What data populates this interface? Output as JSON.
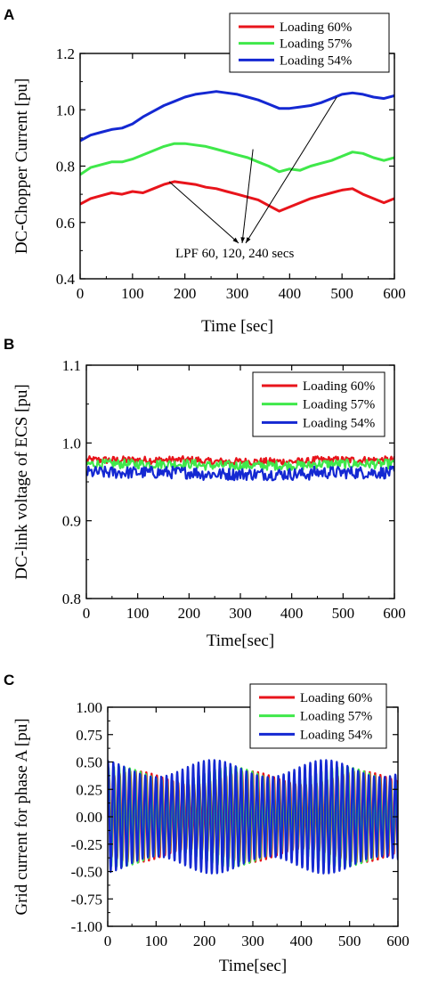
{
  "chart_data": [
    {
      "panel_label": "A",
      "type": "line",
      "xlabel": "Time [sec]",
      "ylabel": "DC-Chopper Current [pu]",
      "xlim": [
        0,
        600
      ],
      "ylim": [
        0.4,
        1.2
      ],
      "xticks": [
        "0",
        "100",
        "200",
        "300",
        "400",
        "500",
        "600"
      ],
      "yticks": [
        "0.4",
        "0.6",
        "0.8",
        "1.0",
        "1.2"
      ],
      "legend_position": "top-right",
      "annotation": "LPF 60, 120, 240 secs",
      "series": [
        {
          "name": "Loading 60%",
          "color": "#e8141b",
          "x": [
            0,
            20,
            40,
            60,
            80,
            100,
            120,
            140,
            160,
            180,
            200,
            220,
            240,
            260,
            280,
            300,
            320,
            340,
            360,
            380,
            400,
            420,
            440,
            460,
            480,
            500,
            520,
            540,
            560,
            580,
            600
          ],
          "y": [
            0.665,
            0.685,
            0.695,
            0.705,
            0.7,
            0.71,
            0.705,
            0.72,
            0.735,
            0.745,
            0.74,
            0.735,
            0.725,
            0.72,
            0.71,
            0.7,
            0.69,
            0.68,
            0.66,
            0.64,
            0.655,
            0.67,
            0.685,
            0.695,
            0.705,
            0.715,
            0.72,
            0.7,
            0.685,
            0.67,
            0.685
          ]
        },
        {
          "name": "Loading 57%",
          "color": "#3fe84a",
          "x": [
            0,
            20,
            40,
            60,
            80,
            100,
            120,
            140,
            160,
            180,
            200,
            220,
            240,
            260,
            280,
            300,
            320,
            340,
            360,
            380,
            400,
            420,
            440,
            460,
            480,
            500,
            520,
            540,
            560,
            580,
            600
          ],
          "y": [
            0.77,
            0.795,
            0.805,
            0.815,
            0.815,
            0.825,
            0.84,
            0.855,
            0.87,
            0.88,
            0.88,
            0.875,
            0.87,
            0.86,
            0.85,
            0.84,
            0.83,
            0.815,
            0.8,
            0.78,
            0.79,
            0.785,
            0.8,
            0.81,
            0.82,
            0.835,
            0.85,
            0.845,
            0.83,
            0.82,
            0.83
          ]
        },
        {
          "name": "Loading 54%",
          "color": "#1428d2",
          "x": [
            0,
            20,
            40,
            60,
            80,
            100,
            120,
            140,
            160,
            180,
            200,
            220,
            240,
            260,
            280,
            300,
            320,
            340,
            360,
            380,
            400,
            420,
            440,
            460,
            480,
            500,
            520,
            540,
            560,
            580,
            600
          ],
          "y": [
            0.89,
            0.91,
            0.92,
            0.93,
            0.935,
            0.95,
            0.975,
            0.995,
            1.015,
            1.03,
            1.045,
            1.055,
            1.06,
            1.065,
            1.06,
            1.055,
            1.045,
            1.035,
            1.02,
            1.005,
            1.005,
            1.01,
            1.015,
            1.025,
            1.04,
            1.055,
            1.06,
            1.055,
            1.045,
            1.04,
            1.05
          ]
        }
      ]
    },
    {
      "panel_label": "B",
      "type": "line",
      "xlabel": "Time[sec]",
      "ylabel": "DC-link voltage of ECS [pu]",
      "xlim": [
        0,
        600
      ],
      "ylim": [
        0.8,
        1.1
      ],
      "xticks": [
        "0",
        "100",
        "200",
        "300",
        "400",
        "500",
        "600"
      ],
      "yticks": [
        "0.8",
        "0.9",
        "1.0",
        "1.1"
      ],
      "legend_position": "top-right",
      "series": [
        {
          "name": "Loading 60%",
          "color": "#e8141b",
          "x": [
            0,
            600
          ],
          "y_mean": 0.978,
          "y_noise": 0.005
        },
        {
          "name": "Loading 57%",
          "color": "#3fe84a",
          "x": [
            0,
            600
          ],
          "y_mean": 0.973,
          "y_noise": 0.006
        },
        {
          "name": "Loading 54%",
          "color": "#1428d2",
          "x": [
            0,
            600
          ],
          "y_mean": 0.962,
          "y_noise": 0.008
        }
      ]
    },
    {
      "panel_label": "C",
      "type": "line",
      "xlabel": "Time[sec]",
      "ylabel": "Grid current for phase A [pu]",
      "xlim": [
        0,
        600
      ],
      "ylim": [
        -1.0,
        1.0
      ],
      "xticks": [
        "0",
        "100",
        "200",
        "300",
        "400",
        "500",
        "600"
      ],
      "yticks": [
        "-1.00",
        "-0.75",
        "-0.50",
        "-0.25",
        "0.00",
        "0.25",
        "0.50",
        "0.75",
        "1.00"
      ],
      "legend_position": "top-right",
      "series": [
        {
          "name": "Loading 60%",
          "color": "#e8141b",
          "x": [
            0,
            600
          ],
          "amplitude": 0.42,
          "period_sec": 11
        },
        {
          "name": "Loading 57%",
          "color": "#3fe84a",
          "x": [
            0,
            600
          ],
          "amplitude": 0.46,
          "period_sec": 11
        },
        {
          "name": "Loading 54%",
          "color": "#1428d2",
          "x": [
            0,
            600
          ],
          "amplitude": 0.52,
          "period_sec": 11
        }
      ]
    }
  ]
}
